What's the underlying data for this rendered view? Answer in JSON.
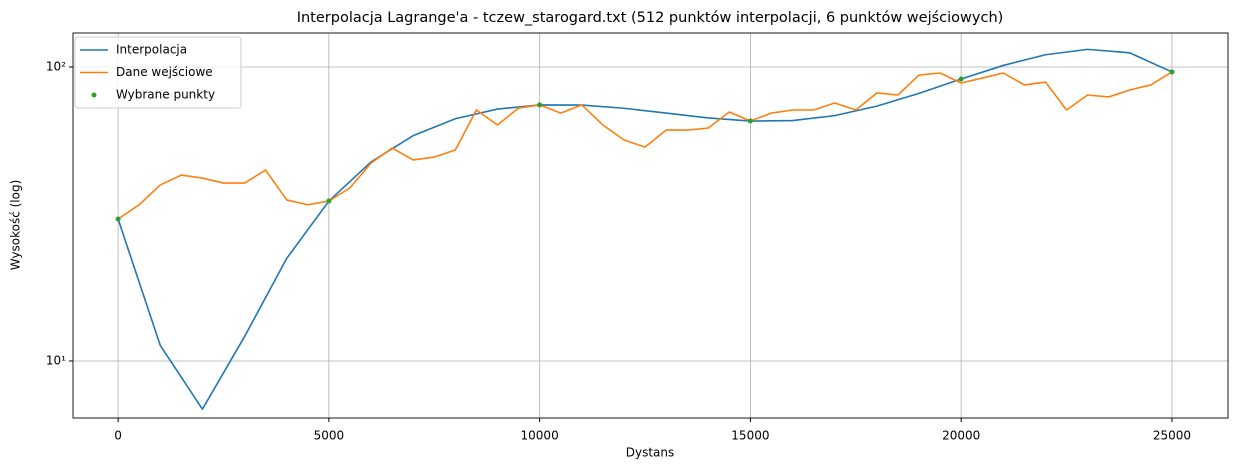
{
  "chart_data": {
    "type": "line",
    "title": "Interpolacja Lagrange'a - tczew_starogard.txt (512 punktów interpolacji, 6 punktów wejściowych)",
    "x_label": "Dystans",
    "y_label": "Wysokość (log)",
    "xlim": [
      -1070,
      26330
    ],
    "ylim": [
      6.4,
      130.5
    ],
    "log_y": true,
    "grid": true,
    "legend": "upper left",
    "xticks": [
      0,
      5000,
      10000,
      15000,
      20000,
      25000
    ],
    "yticks": [
      {
        "value": 10,
        "label": "10¹"
      },
      {
        "value": 100,
        "label": "10²"
      }
    ],
    "series": [
      {
        "name": "Interpolacja",
        "type": "line",
        "color": "#1f77b4",
        "x": [
          0,
          1000,
          2000,
          3000,
          4000,
          5000,
          6000,
          7000,
          8000,
          9000,
          10000,
          11000,
          12000,
          13000,
          14000,
          15000,
          16000,
          17000,
          18000,
          19000,
          20000,
          21000,
          22000,
          23000,
          24000,
          25000
        ],
        "values": [
          30.4,
          11.3,
          6.86,
          12.11,
          22.34,
          35,
          47.55,
          58.41,
          66.66,
          71.93,
          74.3,
          74.22,
          72.39,
          69.7,
          67.1,
          65.5,
          65.72,
          68.32,
          73.59,
          81.36,
          91,
          101.22,
          110.07,
          114.79,
          111.72,
          96.2
        ]
      },
      {
        "name": "Dane wejściowe",
        "type": "line",
        "color": "#ff7f0e",
        "x": [
          0,
          500,
          1000,
          1500,
          2000,
          2500,
          3000,
          3500,
          4000,
          4500,
          5000,
          5500,
          6000,
          6500,
          7000,
          7500,
          8000,
          8500,
          9000,
          9500,
          10000,
          10500,
          11000,
          11500,
          12000,
          12500,
          13000,
          13500,
          14000,
          14500,
          15000,
          15500,
          16000,
          16500,
          17000,
          17500,
          18000,
          18500,
          19000,
          19500,
          20000,
          20500,
          21000,
          21500,
          22000,
          22500,
          23000,
          23500,
          24000,
          24500,
          25000
        ],
        "values": [
          30.4,
          34,
          39.7,
          42.9,
          41.9,
          40.3,
          40.3,
          44.6,
          35.3,
          34,
          35,
          38.8,
          47.1,
          53,
          48.3,
          49.4,
          52.2,
          71.4,
          63.5,
          72.5,
          74.3,
          69.7,
          74.3,
          63.5,
          56.5,
          53.4,
          61,
          61,
          62,
          70.3,
          65.5,
          69.7,
          71.4,
          71.4,
          75.4,
          71.4,
          81.6,
          80.3,
          93.9,
          95.4,
          88.2,
          91.7,
          95.4,
          86.9,
          88.9,
          71.4,
          80.3,
          79.1,
          83.5,
          86.9,
          96.2
        ]
      },
      {
        "name": "Wybrane punkty",
        "type": "scatter",
        "color": "#2ca02c",
        "x": [
          0,
          5000,
          10000,
          15000,
          20000,
          25000
        ],
        "values": [
          30.4,
          35,
          74.3,
          65.5,
          91,
          96.2
        ]
      }
    ]
  }
}
